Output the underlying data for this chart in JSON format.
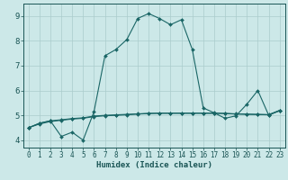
{
  "title": "",
  "xlabel": "Humidex (Indice chaleur)",
  "background_color": "#cce8e8",
  "grid_color": "#aacccc",
  "line_color": "#1a6666",
  "xlim": [
    -0.5,
    23.5
  ],
  "ylim": [
    3.7,
    9.5
  ],
  "xticks": [
    0,
    1,
    2,
    3,
    4,
    5,
    6,
    7,
    8,
    9,
    10,
    11,
    12,
    13,
    14,
    15,
    16,
    17,
    18,
    19,
    20,
    21,
    22,
    23
  ],
  "yticks": [
    4,
    5,
    6,
    7,
    8,
    9
  ],
  "series": [
    {
      "x": [
        0,
        1,
        2,
        3,
        4,
        5,
        6,
        7,
        8,
        9,
        10,
        11,
        12,
        13,
        14,
        15,
        16,
        17,
        18,
        19,
        20,
        21,
        22,
        23
      ],
      "y": [
        4.5,
        4.65,
        4.75,
        4.8,
        4.85,
        4.88,
        4.95,
        4.98,
        5.0,
        5.02,
        5.05,
        5.07,
        5.08,
        5.08,
        5.08,
        5.08,
        5.08,
        5.08,
        5.07,
        5.05,
        5.04,
        5.03,
        5.02,
        5.18
      ]
    },
    {
      "x": [
        0,
        1,
        2,
        3,
        4,
        5,
        6,
        7,
        8,
        9,
        10,
        11,
        12,
        13,
        14,
        15,
        16,
        17,
        18,
        19,
        20,
        21,
        22,
        23
      ],
      "y": [
        4.5,
        4.68,
        4.78,
        4.15,
        4.32,
        4.0,
        5.15,
        7.4,
        7.65,
        8.05,
        8.9,
        9.1,
        8.9,
        8.65,
        8.85,
        7.65,
        5.3,
        5.1,
        4.88,
        4.98,
        5.45,
        6.0,
        5.0,
        5.2
      ]
    },
    {
      "x": [
        0,
        1,
        2,
        3,
        4,
        5,
        6,
        7,
        8,
        9,
        10,
        11,
        12,
        13,
        14,
        15,
        16,
        17,
        18,
        19,
        20,
        21,
        22,
        23
      ],
      "y": [
        4.5,
        4.68,
        4.78,
        4.82,
        4.87,
        4.9,
        4.97,
        5.0,
        5.02,
        5.04,
        5.06,
        5.08,
        5.09,
        5.09,
        5.09,
        5.09,
        5.09,
        5.09,
        5.08,
        5.06,
        5.05,
        5.04,
        5.03,
        5.2
      ]
    }
  ]
}
